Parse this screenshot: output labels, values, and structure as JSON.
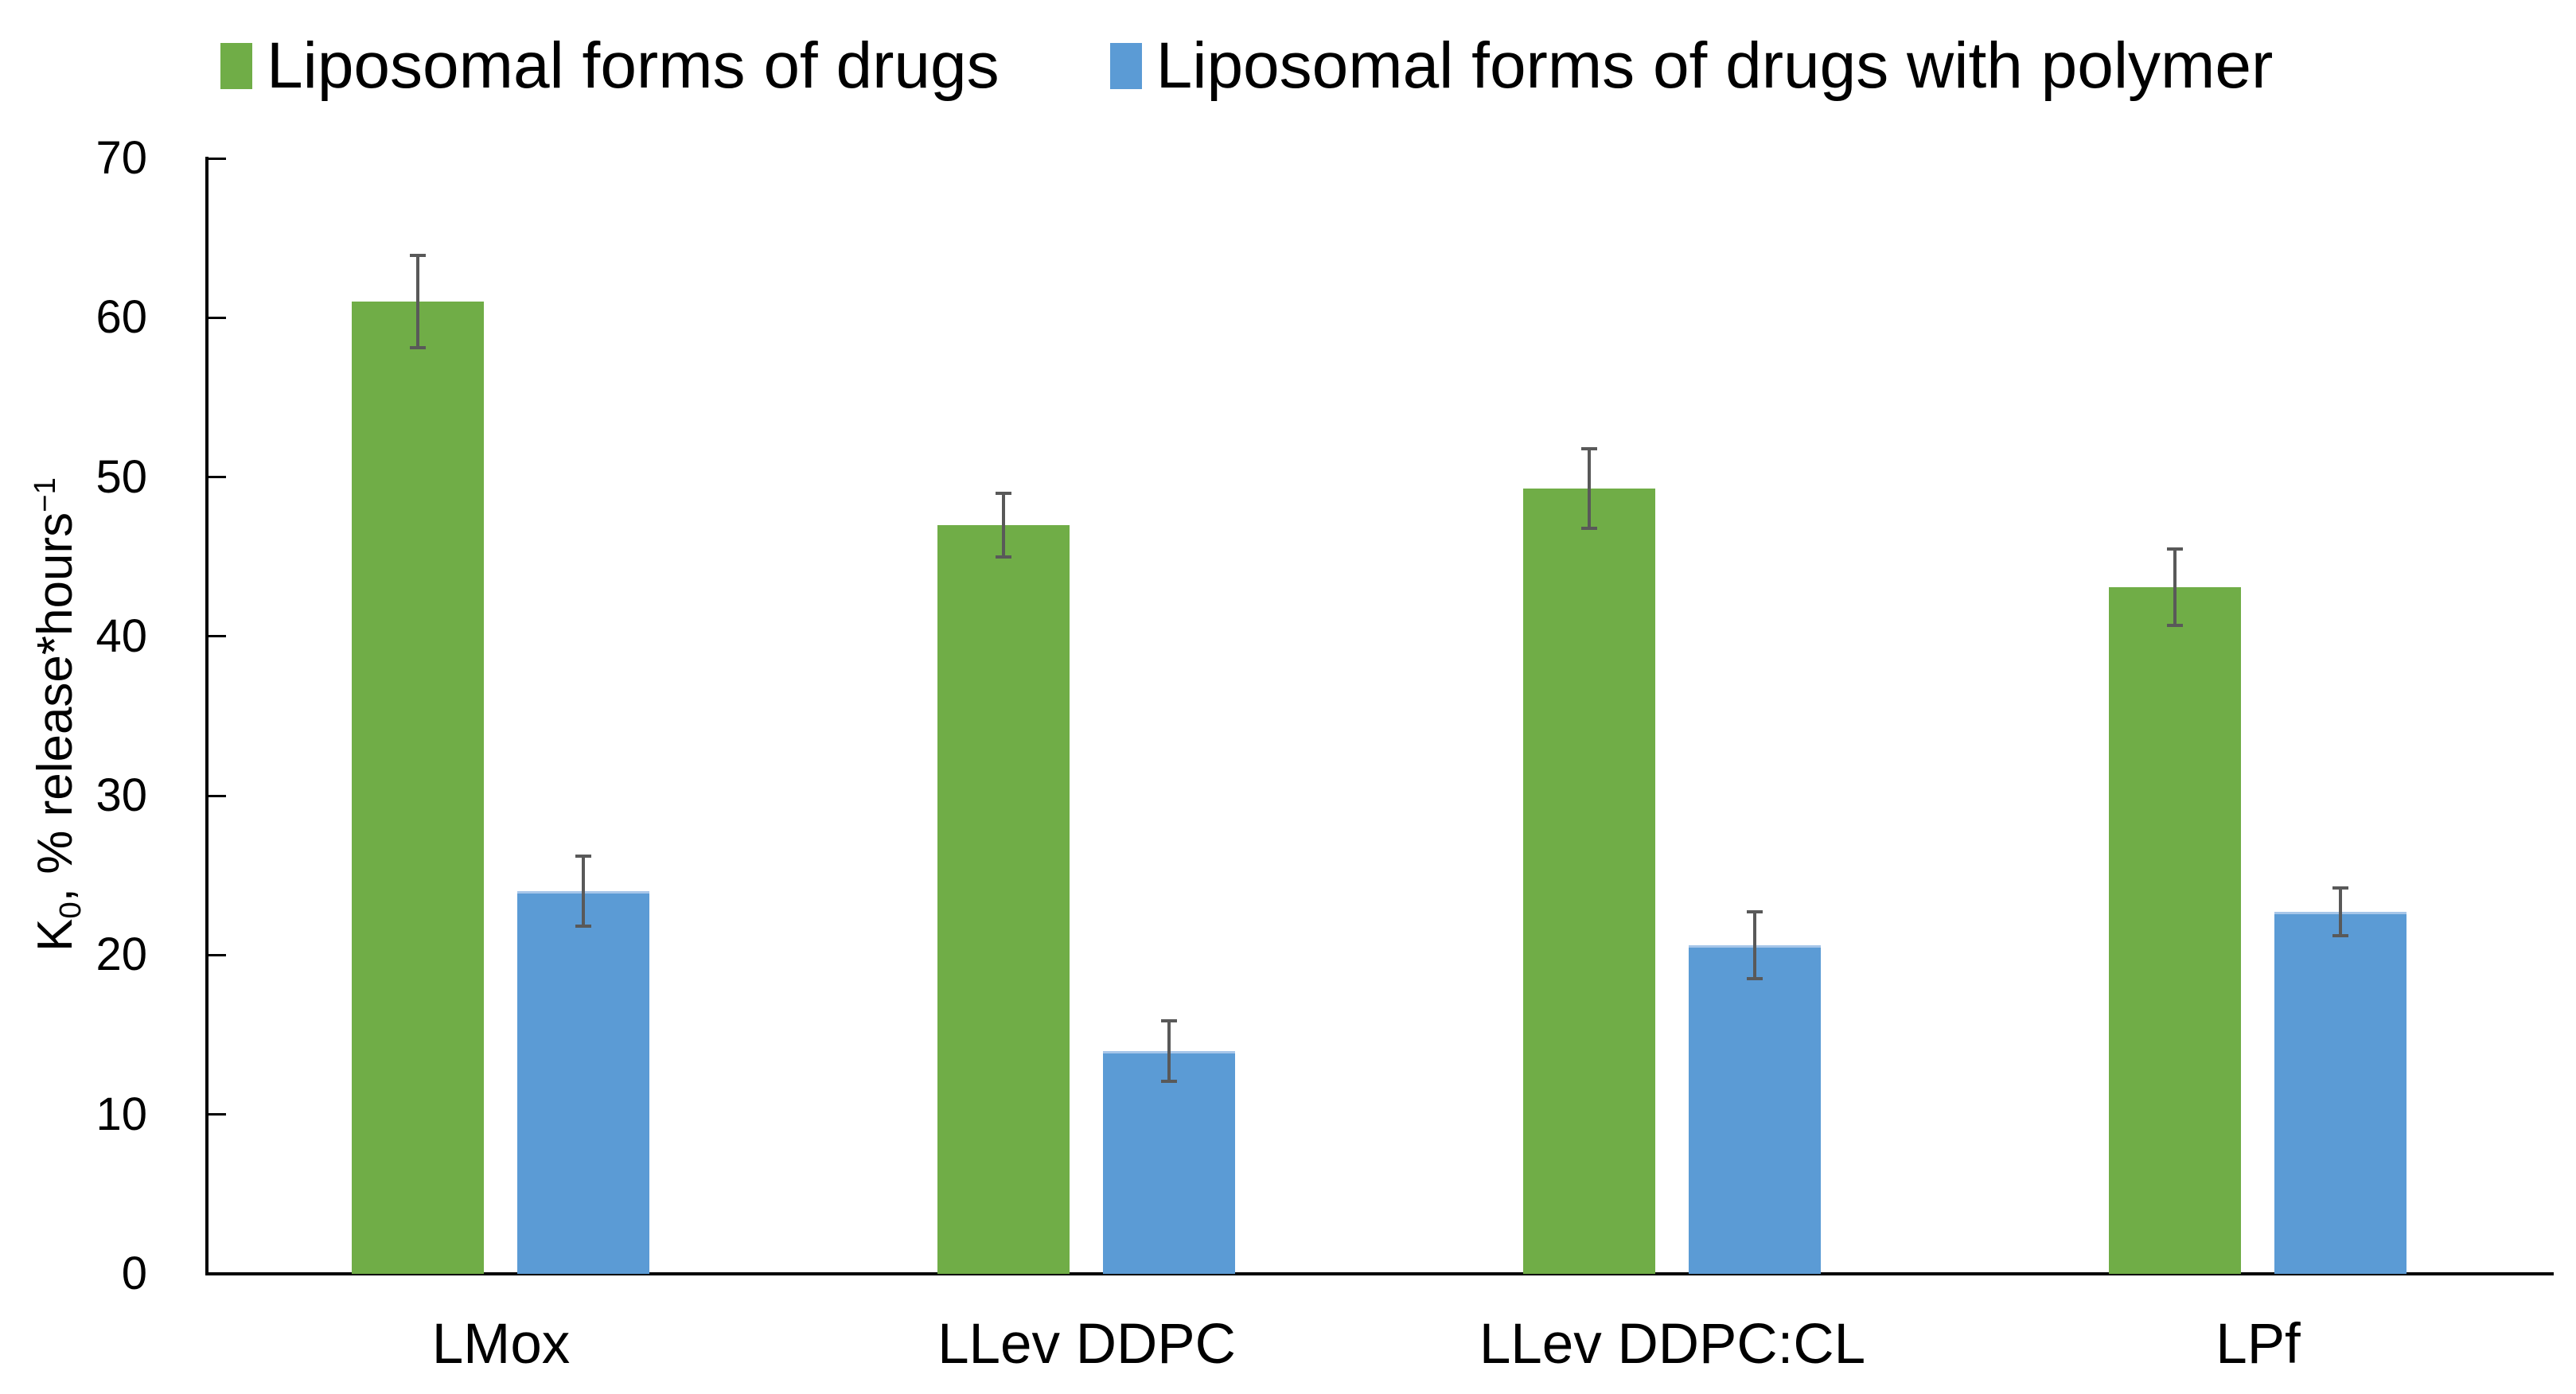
{
  "chart_data": {
    "type": "bar",
    "title": "",
    "categories": [
      "LMox",
      "LLev DDPC",
      "LLev DDPC:CL",
      "LPf"
    ],
    "series": [
      {
        "name": "Liposomal forms of drugs",
        "color": "#70AD47",
        "values": [
          61,
          47,
          49.3,
          43.1
        ],
        "error_bars": [
          2.9,
          2.0,
          2.5,
          2.4
        ]
      },
      {
        "name": "Liposomal forms of drugs with polymer",
        "color": "#5B9BD5",
        "values": [
          24,
          14,
          20.6,
          22.7
        ],
        "error_bars": [
          2.2,
          1.9,
          2.1,
          1.5
        ]
      }
    ],
    "ylabel": {
      "pre": "K",
      "sub": "0",
      "mid": ", % release*hours",
      "sup": "−1"
    },
    "xlabel": "",
    "ylim": [
      0,
      70
    ],
    "ytick_step": 10,
    "ytick_labels": [
      "0",
      "10",
      "20",
      "30",
      "40",
      "50",
      "60",
      "70"
    ],
    "grid": false,
    "legend_position": "top",
    "error_bar_color": "#595959",
    "axis_color": "#000000"
  }
}
